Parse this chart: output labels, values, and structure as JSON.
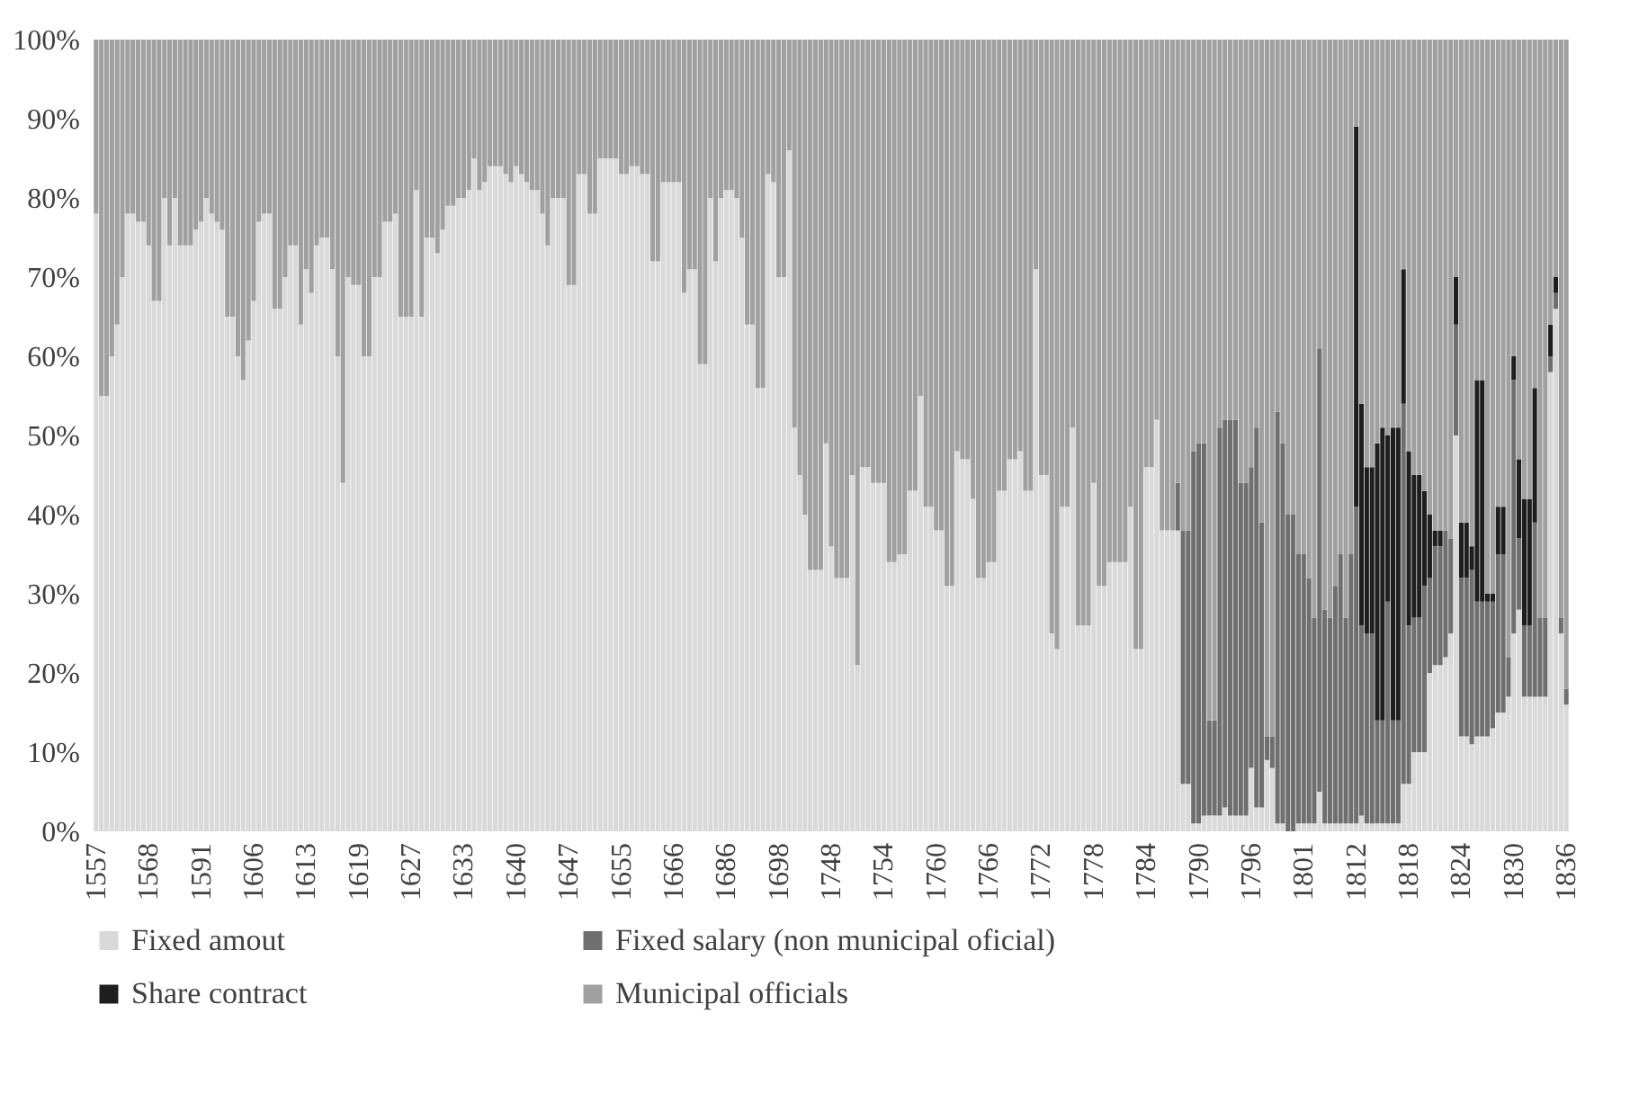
{
  "chart_data": {
    "type": "bar",
    "stacked": true,
    "legend": "bottom",
    "categories": [
      "1557",
      null,
      null,
      null,
      null,
      null,
      null,
      null,
      null,
      null,
      "1568",
      null,
      null,
      null,
      null,
      null,
      null,
      null,
      null,
      null,
      "1591",
      null,
      null,
      null,
      null,
      null,
      null,
      null,
      null,
      null,
      "1606",
      null,
      null,
      null,
      null,
      null,
      null,
      null,
      null,
      null,
      "1613",
      null,
      null,
      null,
      null,
      null,
      null,
      null,
      null,
      null,
      "1619",
      null,
      null,
      null,
      null,
      null,
      null,
      null,
      null,
      null,
      "1627",
      null,
      null,
      null,
      null,
      null,
      null,
      null,
      null,
      null,
      "1633",
      null,
      null,
      null,
      null,
      null,
      null,
      null,
      null,
      null,
      "1640",
      null,
      null,
      null,
      null,
      null,
      null,
      null,
      null,
      null,
      "1647",
      null,
      null,
      null,
      null,
      null,
      null,
      null,
      null,
      null,
      "1655",
      null,
      null,
      null,
      null,
      null,
      null,
      null,
      null,
      null,
      "1666",
      null,
      null,
      null,
      null,
      null,
      null,
      null,
      null,
      null,
      "1686",
      null,
      null,
      null,
      null,
      null,
      null,
      null,
      null,
      null,
      "1698",
      null,
      null,
      null,
      null,
      null,
      null,
      null,
      null,
      null,
      "1748",
      null,
      null,
      null,
      null,
      null,
      null,
      null,
      null,
      null,
      "1754",
      null,
      null,
      null,
      null,
      null,
      null,
      null,
      null,
      null,
      "1760",
      null,
      null,
      null,
      null,
      null,
      null,
      null,
      null,
      null,
      "1766",
      null,
      null,
      null,
      null,
      null,
      null,
      null,
      null,
      null,
      "1772",
      null,
      null,
      null,
      null,
      null,
      null,
      null,
      null,
      null,
      "1778",
      null,
      null,
      null,
      null,
      null,
      null,
      null,
      null,
      null,
      "1784",
      null,
      null,
      null,
      null,
      null,
      null,
      null,
      null,
      null,
      "1790",
      null,
      null,
      null,
      null,
      null,
      null,
      null,
      null,
      null,
      "1796",
      null,
      null,
      null,
      null,
      null,
      null,
      null,
      null,
      null,
      "1801",
      null,
      null,
      null,
      null,
      null,
      null,
      null,
      null,
      null,
      "1812",
      null,
      null,
      null,
      null,
      null,
      null,
      null,
      null,
      null,
      "1818",
      null,
      null,
      null,
      null,
      null,
      null,
      null,
      null,
      null,
      "1824",
      null,
      null,
      null,
      null,
      null,
      null,
      null,
      null,
      null,
      "1830",
      null,
      null,
      null,
      null,
      null,
      null,
      null,
      null,
      null,
      "1836"
    ],
    "series": [
      {
        "name": "Fixed amout",
        "color": "#d9d9d9",
        "values": [
          78,
          55,
          55,
          60,
          64,
          70,
          78,
          78,
          77,
          77,
          74,
          67,
          67,
          80,
          74,
          80,
          74,
          74,
          74,
          76,
          77,
          80,
          78,
          77,
          76,
          65,
          65,
          60,
          57,
          62,
          67,
          77,
          78,
          78,
          66,
          66,
          70,
          74,
          74,
          64,
          71,
          68,
          74,
          75,
          75,
          71,
          60,
          44,
          70,
          69,
          69,
          60,
          60,
          70,
          70,
          77,
          77,
          78,
          65,
          65,
          65,
          81,
          65,
          75,
          75,
          73,
          76,
          79,
          79,
          80,
          80,
          81,
          85,
          81,
          82,
          84,
          84,
          84,
          83,
          82,
          84,
          83,
          82,
          81,
          81,
          78,
          74,
          80,
          80,
          80,
          69,
          69,
          83,
          83,
          78,
          78,
          85,
          85,
          85,
          85,
          83,
          83,
          84,
          84,
          83,
          83,
          72,
          72,
          82,
          82,
          82,
          82,
          68,
          71,
          71,
          59,
          59,
          80,
          72,
          80,
          81,
          81,
          80,
          75,
          64,
          64,
          56,
          56,
          83,
          82,
          70,
          70,
          86,
          51,
          45,
          40,
          33,
          33,
          33,
          49,
          36,
          32,
          32,
          32,
          45,
          21,
          46,
          46,
          44,
          44,
          44,
          34,
          34,
          35,
          35,
          43,
          43,
          55,
          41,
          41,
          38,
          38,
          31,
          31,
          48,
          47,
          47,
          42,
          32,
          32,
          34,
          34,
          43,
          43,
          47,
          47,
          48,
          43,
          43,
          71,
          45,
          45,
          25,
          23,
          41,
          41,
          51,
          26,
          26,
          26,
          44,
          31,
          31,
          34,
          34,
          34,
          34,
          41,
          23,
          23,
          46,
          46,
          52,
          38,
          38,
          38,
          38,
          6,
          6,
          1,
          1,
          2,
          2,
          2,
          2,
          3,
          2,
          2,
          2,
          2,
          8,
          3,
          3,
          9,
          8,
          1,
          1,
          0,
          0,
          1,
          1,
          1,
          1,
          5,
          1,
          1,
          1,
          1,
          1,
          1,
          1,
          2,
          1,
          1,
          1,
          1,
          1,
          1,
          1,
          6,
          6,
          10,
          10,
          10,
          20,
          21,
          21,
          22,
          25,
          50,
          12,
          12,
          11,
          12,
          12,
          12,
          13,
          15,
          15,
          17,
          25,
          28,
          17,
          17,
          17,
          17,
          17,
          58,
          66,
          25,
          16
        ]
      },
      {
        "name": "Fixed salary (non municipal oficial)",
        "color": "#6f6f6f",
        "values": [
          0,
          0,
          0,
          0,
          0,
          0,
          0,
          0,
          0,
          0,
          0,
          0,
          0,
          0,
          0,
          0,
          0,
          0,
          0,
          0,
          0,
          0,
          0,
          0,
          0,
          0,
          0,
          0,
          0,
          0,
          0,
          0,
          0,
          0,
          0,
          0,
          0,
          0,
          0,
          0,
          0,
          0,
          0,
          0,
          0,
          0,
          0,
          0,
          0,
          0,
          0,
          0,
          0,
          0,
          0,
          0,
          0,
          0,
          0,
          0,
          0,
          0,
          0,
          0,
          0,
          0,
          0,
          0,
          0,
          0,
          0,
          0,
          0,
          0,
          0,
          0,
          0,
          0,
          0,
          0,
          0,
          0,
          0,
          0,
          0,
          0,
          0,
          0,
          0,
          0,
          0,
          0,
          0,
          0,
          0,
          0,
          0,
          0,
          0,
          0,
          0,
          0,
          0,
          0,
          0,
          0,
          0,
          0,
          0,
          0,
          0,
          0,
          0,
          0,
          0,
          0,
          0,
          0,
          0,
          0,
          0,
          0,
          0,
          0,
          0,
          0,
          0,
          0,
          0,
          0,
          0,
          0,
          0,
          0,
          0,
          0,
          0,
          0,
          0,
          0,
          0,
          0,
          0,
          0,
          0,
          0,
          0,
          0,
          0,
          0,
          0,
          0,
          0,
          0,
          0,
          0,
          0,
          0,
          0,
          0,
          0,
          0,
          0,
          0,
          0,
          0,
          0,
          0,
          0,
          0,
          0,
          0,
          0,
          0,
          0,
          0,
          0,
          0,
          0,
          0,
          0,
          0,
          0,
          0,
          0,
          0,
          0,
          0,
          0,
          0,
          0,
          0,
          0,
          0,
          0,
          0,
          0,
          0,
          0,
          0,
          0,
          0,
          0,
          0,
          0,
          0,
          6,
          32,
          32,
          47,
          48,
          47,
          12,
          12,
          49,
          49,
          50,
          50,
          42,
          42,
          38,
          48,
          36,
          3,
          4,
          52,
          48,
          40,
          40,
          34,
          34,
          31,
          26,
          56,
          27,
          26,
          30,
          34,
          26,
          34,
          40,
          24,
          24,
          24,
          13,
          13,
          28,
          13,
          13,
          48,
          20,
          17,
          17,
          21,
          12,
          15,
          15,
          16,
          12,
          14,
          20,
          20,
          22,
          17,
          17,
          17,
          16,
          20,
          20,
          5,
          32,
          9,
          9,
          9,
          22,
          10,
          10,
          2,
          2,
          2,
          2
        ]
      },
      {
        "name": "Share contract",
        "color": "#1e1e1e",
        "values": [
          0,
          0,
          0,
          0,
          0,
          0,
          0,
          0,
          0,
          0,
          0,
          0,
          0,
          0,
          0,
          0,
          0,
          0,
          0,
          0,
          0,
          0,
          0,
          0,
          0,
          0,
          0,
          0,
          0,
          0,
          0,
          0,
          0,
          0,
          0,
          0,
          0,
          0,
          0,
          0,
          0,
          0,
          0,
          0,
          0,
          0,
          0,
          0,
          0,
          0,
          0,
          0,
          0,
          0,
          0,
          0,
          0,
          0,
          0,
          0,
          0,
          0,
          0,
          0,
          0,
          0,
          0,
          0,
          0,
          0,
          0,
          0,
          0,
          0,
          0,
          0,
          0,
          0,
          0,
          0,
          0,
          0,
          0,
          0,
          0,
          0,
          0,
          0,
          0,
          0,
          0,
          0,
          0,
          0,
          0,
          0,
          0,
          0,
          0,
          0,
          0,
          0,
          0,
          0,
          0,
          0,
          0,
          0,
          0,
          0,
          0,
          0,
          0,
          0,
          0,
          0,
          0,
          0,
          0,
          0,
          0,
          0,
          0,
          0,
          0,
          0,
          0,
          0,
          0,
          0,
          0,
          0,
          0,
          0,
          0,
          0,
          0,
          0,
          0,
          0,
          0,
          0,
          0,
          0,
          0,
          0,
          0,
          0,
          0,
          0,
          0,
          0,
          0,
          0,
          0,
          0,
          0,
          0,
          0,
          0,
          0,
          0,
          0,
          0,
          0,
          0,
          0,
          0,
          0,
          0,
          0,
          0,
          0,
          0,
          0,
          0,
          0,
          0,
          0,
          0,
          0,
          0,
          0,
          0,
          0,
          0,
          0,
          0,
          0,
          0,
          0,
          0,
          0,
          0,
          0,
          0,
          0,
          0,
          0,
          0,
          0,
          0,
          0,
          0,
          0,
          0,
          0,
          0,
          0,
          0,
          0,
          0,
          0,
          0,
          0,
          0,
          0,
          0,
          0,
          0,
          0,
          0,
          0,
          0,
          0,
          0,
          0,
          0,
          0,
          0,
          0,
          0,
          0,
          0,
          0,
          0,
          0,
          0,
          0,
          0,
          48,
          28,
          21,
          21,
          35,
          37,
          21,
          37,
          37,
          17,
          22,
          18,
          18,
          12,
          8,
          2,
          2,
          0,
          0,
          6,
          7,
          7,
          3,
          28,
          28,
          1,
          1,
          6,
          6,
          0,
          3,
          10,
          16,
          16,
          17,
          0,
          0,
          4,
          2,
          0,
          0
        ]
      },
      {
        "name": "Municipal officials",
        "color": "#a0a0a0",
        "values": [
          22,
          45,
          45,
          40,
          36,
          30,
          22,
          22,
          23,
          23,
          26,
          33,
          33,
          20,
          26,
          20,
          26,
          26,
          26,
          24,
          23,
          20,
          22,
          23,
          24,
          35,
          35,
          40,
          43,
          38,
          33,
          23,
          22,
          22,
          34,
          34,
          30,
          26,
          26,
          36,
          29,
          32,
          26,
          25,
          25,
          29,
          40,
          56,
          30,
          31,
          31,
          40,
          40,
          30,
          30,
          23,
          23,
          22,
          35,
          35,
          35,
          19,
          35,
          25,
          25,
          27,
          24,
          21,
          21,
          20,
          20,
          19,
          15,
          19,
          18,
          16,
          16,
          16,
          17,
          18,
          16,
          17,
          18,
          19,
          19,
          22,
          26,
          20,
          20,
          20,
          31,
          31,
          17,
          17,
          22,
          22,
          15,
          15,
          15,
          15,
          17,
          17,
          16,
          16,
          17,
          17,
          28,
          28,
          18,
          18,
          18,
          18,
          32,
          29,
          29,
          41,
          41,
          20,
          28,
          20,
          19,
          19,
          20,
          25,
          36,
          36,
          44,
          44,
          17,
          18,
          30,
          30,
          14,
          49,
          55,
          60,
          67,
          67,
          67,
          51,
          64,
          68,
          68,
          68,
          55,
          79,
          54,
          54,
          56,
          56,
          56,
          66,
          66,
          65,
          65,
          57,
          57,
          45,
          59,
          59,
          62,
          62,
          69,
          69,
          52,
          53,
          53,
          58,
          68,
          68,
          66,
          66,
          57,
          57,
          53,
          53,
          52,
          57,
          57,
          29,
          55,
          55,
          75,
          77,
          59,
          59,
          49,
          74,
          74,
          74,
          56,
          69,
          69,
          66,
          66,
          66,
          66,
          59,
          77,
          77,
          54,
          54,
          48,
          62,
          62,
          62,
          56,
          62,
          62,
          52,
          51,
          51,
          86,
          86,
          49,
          48,
          48,
          48,
          56,
          56,
          54,
          49,
          61,
          88,
          88,
          47,
          51,
          60,
          60,
          65,
          65,
          68,
          73,
          39,
          72,
          73,
          69,
          65,
          73,
          65,
          11,
          46,
          54,
          54,
          51,
          49,
          50,
          49,
          49,
          29,
          52,
          55,
          55,
          57,
          60,
          62,
          62,
          62,
          63,
          30,
          61,
          61,
          64,
          43,
          43,
          70,
          70,
          59,
          59,
          78,
          40,
          53,
          58,
          58,
          44,
          73,
          73,
          36,
          30,
          73,
          82
        ]
      }
    ],
    "ylim": [
      0,
      100
    ],
    "yticks": [
      {
        "value": 0,
        "label": "0%"
      },
      {
        "value": 10,
        "label": "10%"
      },
      {
        "value": 20,
        "label": "20%"
      },
      {
        "value": 30,
        "label": "30%"
      },
      {
        "value": 40,
        "label": "40%"
      },
      {
        "value": 50,
        "label": "50%"
      },
      {
        "value": 60,
        "label": "60%"
      },
      {
        "value": 70,
        "label": "70%"
      },
      {
        "value": 80,
        "label": "80%"
      },
      {
        "value": 90,
        "label": "90%"
      },
      {
        "value": 100,
        "label": "100%"
      }
    ]
  }
}
